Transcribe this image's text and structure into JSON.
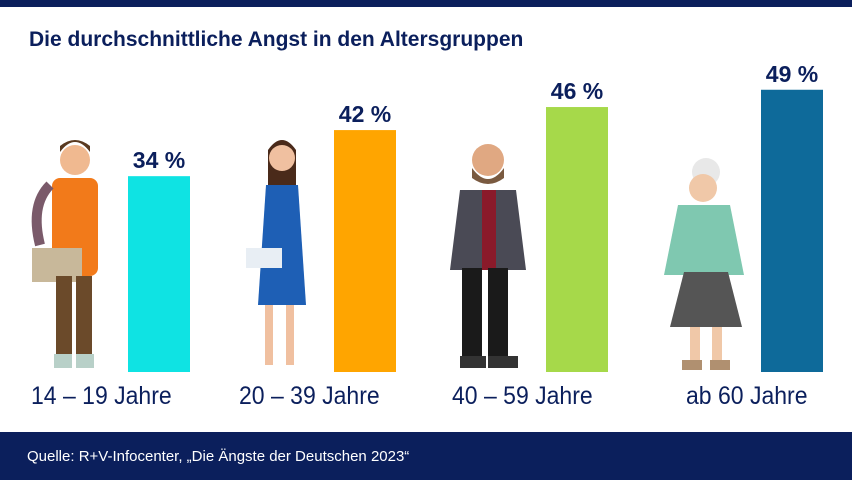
{
  "title": "Die durchschnittliche Angst in den Altersgruppen",
  "source": "Quelle: R+V-Infocenter, „Die Ängste der Deutschen 2023“",
  "colors": {
    "navy": "#0b1f5c"
  },
  "chart_data": {
    "type": "bar",
    "title": "Die durchschnittliche Angst in den Altersgruppen",
    "categories": [
      "14 – 19 Jahre",
      "20 – 39 Jahre",
      "40 – 59 Jahre",
      "ab 60 Jahre"
    ],
    "values": [
      34,
      42,
      46,
      49
    ],
    "value_labels": [
      "34 %",
      "42 %",
      "46 %",
      "49 %"
    ],
    "unit": "%",
    "colors": [
      "#0fe3e3",
      "#ffa500",
      "#a6d94a",
      "#0e6a9a"
    ],
    "ylim": [
      0,
      50
    ],
    "grid": false,
    "legend": "none"
  }
}
